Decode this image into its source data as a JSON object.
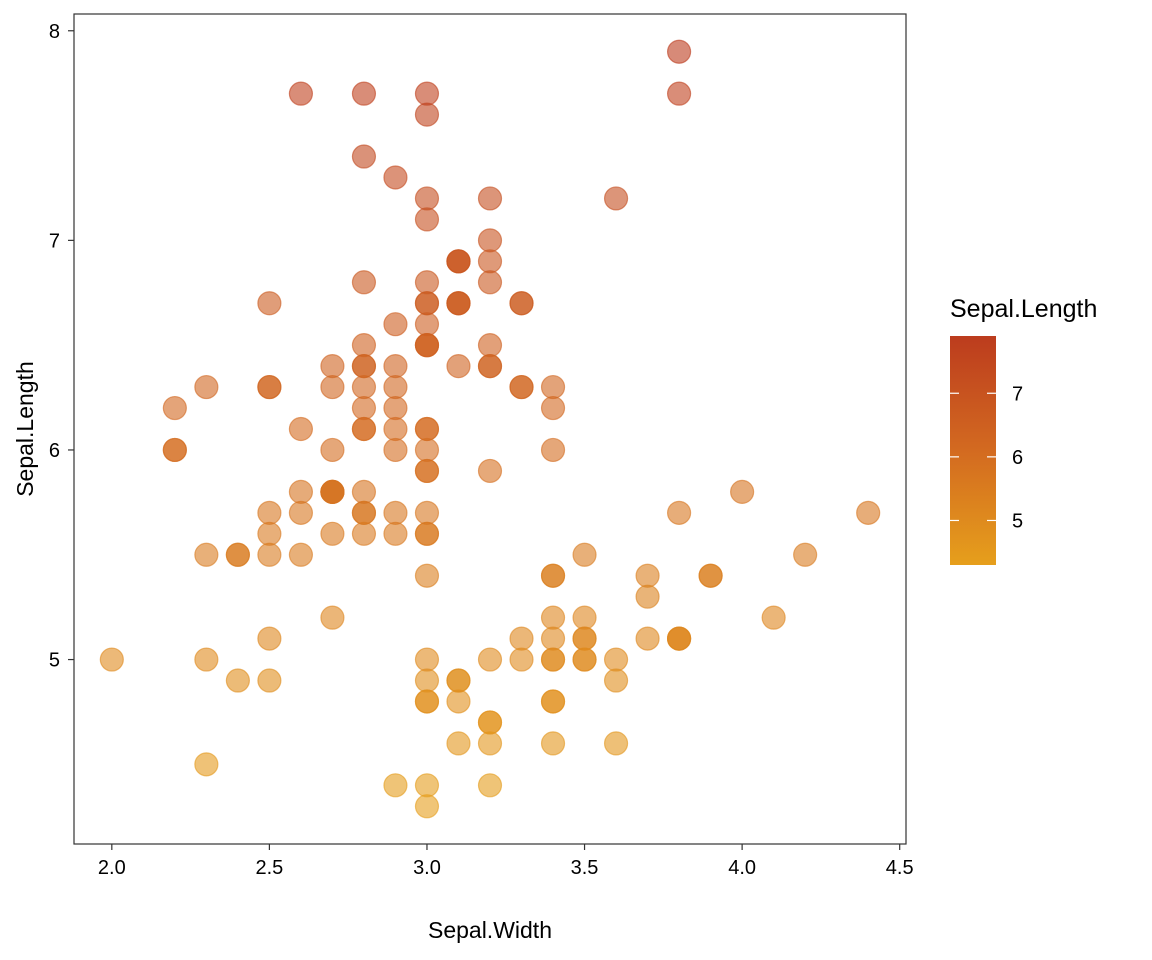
{
  "chart_data": {
    "type": "scatter",
    "title": "",
    "xlabel": "Sepal.Width",
    "ylabel": "Sepal.Length",
    "xlim": [
      1.88,
      4.52
    ],
    "ylim": [
      4.12,
      8.08
    ],
    "x_ticks": [
      2.0,
      2.5,
      3.0,
      3.5,
      4.0,
      4.5
    ],
    "x_tick_labels": [
      "2.0",
      "2.5",
      "3.0",
      "3.5",
      "4.0",
      "4.5"
    ],
    "y_ticks": [
      5,
      6,
      7,
      8
    ],
    "y_tick_labels": [
      "5",
      "6",
      "7",
      "8"
    ],
    "grid": false,
    "legend": {
      "title": "Sepal.Length",
      "placement": "right",
      "type": "colorbar",
      "range": [
        4.3,
        7.9
      ],
      "ticks": [
        5,
        6,
        7
      ],
      "tick_labels": [
        "5",
        "6",
        "7"
      ],
      "colors": [
        "#E69F1C",
        "#BC3C1E"
      ]
    },
    "marker_alpha": 0.6,
    "series": [
      {
        "x": [
          3.5,
          3.0,
          3.2,
          3.1,
          3.6,
          3.9,
          3.4,
          3.4,
          2.9,
          3.1,
          3.7,
          3.4,
          3.0,
          3.0,
          4.0,
          4.4,
          3.9,
          3.5,
          3.8,
          3.8,
          3.4,
          3.7,
          3.6,
          3.3,
          3.4,
          3.0,
          3.4,
          3.5,
          3.4,
          3.2,
          3.1,
          3.4,
          4.1,
          4.2,
          3.1,
          3.2,
          3.5,
          3.6,
          3.0,
          3.4,
          3.5,
          2.3,
          3.2,
          3.5,
          3.8,
          3.0,
          3.8,
          3.2,
          3.7,
          3.3,
          3.2,
          3.2,
          3.1,
          2.3,
          2.8,
          2.8,
          3.3,
          2.4,
          2.9,
          2.7,
          2.0,
          3.0,
          2.2,
          2.9,
          2.9,
          3.1,
          3.0,
          2.7,
          2.2,
          2.5,
          3.2,
          2.8,
          2.5,
          2.8,
          2.9,
          3.0,
          2.8,
          3.0,
          2.9,
          2.6,
          2.4,
          2.4,
          2.7,
          2.7,
          3.0,
          3.4,
          3.1,
          2.3,
          3.0,
          2.5,
          2.6,
          3.0,
          2.6,
          2.3,
          2.7,
          3.0,
          2.9,
          2.9,
          2.5,
          2.8,
          3.3,
          2.7,
          3.0,
          2.9,
          3.0,
          3.0,
          2.5,
          2.9,
          2.5,
          3.6,
          3.2,
          2.7,
          3.0,
          2.5,
          2.8,
          3.2,
          3.0,
          3.8,
          2.6,
          2.2,
          3.2,
          2.8,
          2.8,
          2.7,
          3.3,
          3.2,
          2.8,
          3.0,
          2.8,
          3.0,
          2.8,
          3.8,
          2.8,
          2.8,
          2.6,
          3.0,
          3.4,
          3.1,
          3.0,
          3.1,
          3.1,
          3.1,
          2.7,
          3.2,
          3.3,
          3.0,
          2.5,
          3.0,
          3.4,
          3.0
        ],
        "y": [
          5.1,
          4.9,
          4.7,
          4.6,
          5.0,
          5.4,
          4.6,
          5.0,
          4.4,
          4.9,
          5.4,
          4.8,
          4.8,
          4.3,
          5.8,
          5.7,
          5.4,
          5.1,
          5.7,
          5.1,
          5.4,
          5.1,
          4.6,
          5.1,
          4.8,
          5.0,
          5.0,
          5.2,
          5.2,
          4.7,
          4.8,
          5.4,
          5.2,
          5.5,
          4.9,
          5.0,
          5.5,
          4.9,
          4.4,
          5.1,
          5.0,
          4.5,
          4.4,
          5.0,
          5.1,
          4.8,
          5.1,
          4.6,
          5.3,
          5.0,
          7.0,
          6.4,
          6.9,
          5.5,
          6.5,
          5.7,
          6.3,
          4.9,
          6.6,
          5.2,
          5.0,
          5.9,
          6.0,
          6.1,
          5.6,
          6.7,
          5.6,
          5.8,
          6.2,
          5.6,
          5.9,
          6.1,
          6.3,
          6.1,
          6.4,
          6.6,
          6.8,
          6.7,
          6.0,
          5.7,
          5.5,
          5.5,
          5.8,
          6.0,
          5.4,
          6.0,
          6.7,
          6.3,
          5.6,
          5.5,
          5.5,
          6.1,
          5.8,
          5.0,
          5.6,
          5.7,
          5.7,
          6.2,
          5.1,
          5.7,
          6.3,
          5.8,
          7.1,
          6.3,
          6.5,
          7.6,
          4.9,
          7.3,
          6.7,
          7.2,
          6.5,
          6.4,
          6.8,
          5.7,
          5.8,
          6.4,
          6.5,
          7.7,
          7.7,
          6.0,
          6.9,
          5.6,
          7.7,
          6.3,
          6.7,
          7.2,
          6.2,
          6.1,
          6.4,
          7.2,
          7.4,
          7.9,
          6.4,
          6.3,
          6.1,
          7.7,
          6.3,
          6.4,
          6.0,
          6.9,
          6.7,
          6.9,
          5.8,
          6.8,
          6.7,
          6.7,
          6.3,
          6.5,
          6.2,
          5.9
        ]
      }
    ]
  }
}
